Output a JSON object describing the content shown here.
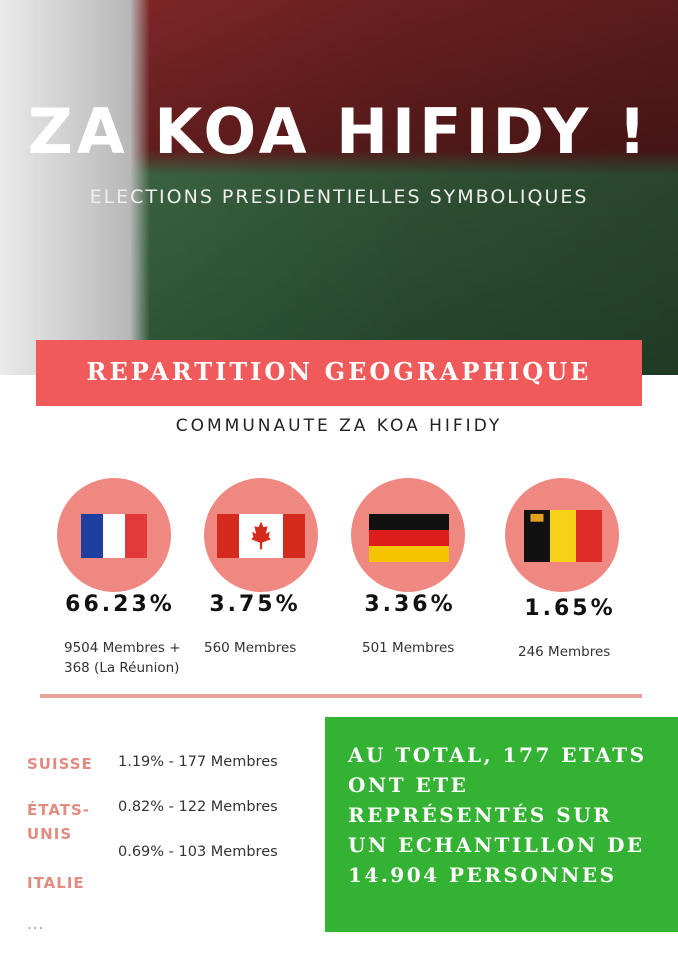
{
  "header": {
    "title": "ZA KOA HIFIDY !",
    "subtitle": "ELECTIONS PRESIDENTIELLES SYMBOLIQUES"
  },
  "section": {
    "title": "REPARTITION GEOGRAPHIQUE",
    "subtitle": "COMMUNAUTE ZA KOA HIFIDY"
  },
  "countries": [
    {
      "percent": "66.23%",
      "members": "9504 Membres + 368 (La Réunion)"
    },
    {
      "percent": "3.75%",
      "members": "560 Membres"
    },
    {
      "percent": "3.36%",
      "members": "501 Membres"
    },
    {
      "percent": "1.65%",
      "members": "246 Membres"
    }
  ],
  "others": {
    "rows": [
      {
        "country": "SUISSE",
        "stat": "1.19% - 177 Membres"
      },
      {
        "country": "ÉTATS-UNIS",
        "stat": "0.82% - 122 Membres"
      },
      {
        "country": "ITALIE",
        "stat": "0.69% - 103 Membres"
      }
    ],
    "more": "..."
  },
  "total": "AU TOTAL, 177 ETATS ONT ETE REPRÉSENTÉS SUR UN ECHANTILLON DE 14.904 PERSONNES"
}
